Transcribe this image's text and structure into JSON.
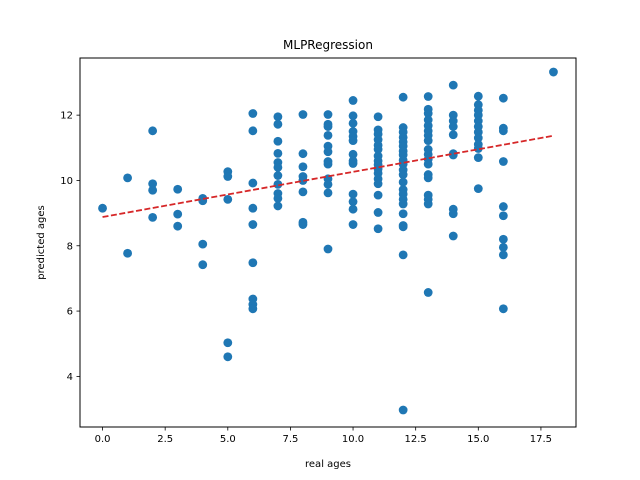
{
  "chart_data": {
    "type": "scatter",
    "title": "MLPRegression",
    "xlabel": "real ages",
    "ylabel": "predicted ages",
    "xlim": [
      -0.9,
      18.9
    ],
    "ylim": [
      2.45,
      13.75
    ],
    "xticks": [
      0.0,
      2.5,
      5.0,
      7.5,
      10.0,
      12.5,
      15.0,
      17.5
    ],
    "xtick_labels": [
      "0.0",
      "2.5",
      "5.0",
      "7.5",
      "10.0",
      "12.5",
      "15.0",
      "17.5"
    ],
    "yticks": [
      4,
      6,
      8,
      10,
      12
    ],
    "ytick_labels": [
      "4",
      "6",
      "8",
      "10",
      "12"
    ],
    "grid": false,
    "point_color": "#1f77b4",
    "trend_color": "#d62728",
    "trend_style": "dashed",
    "trend_line": {
      "x": [
        0,
        18
      ],
      "y": [
        8.88,
        11.37
      ]
    },
    "points": [
      {
        "x": 0,
        "y": 9.15
      },
      {
        "x": 1,
        "y": 10.08
      },
      {
        "x": 1,
        "y": 7.77
      },
      {
        "x": 2,
        "y": 11.52
      },
      {
        "x": 2,
        "y": 9.9
      },
      {
        "x": 2,
        "y": 9.7
      },
      {
        "x": 2,
        "y": 8.87
      },
      {
        "x": 3,
        "y": 9.73
      },
      {
        "x": 3,
        "y": 8.97
      },
      {
        "x": 3,
        "y": 8.6
      },
      {
        "x": 4,
        "y": 9.45
      },
      {
        "x": 4,
        "y": 9.38
      },
      {
        "x": 4,
        "y": 8.05
      },
      {
        "x": 4,
        "y": 7.42
      },
      {
        "x": 5,
        "y": 10.27
      },
      {
        "x": 5,
        "y": 10.12
      },
      {
        "x": 5,
        "y": 9.42
      },
      {
        "x": 5,
        "y": 5.03
      },
      {
        "x": 5,
        "y": 4.6
      },
      {
        "x": 6,
        "y": 12.05
      },
      {
        "x": 6,
        "y": 11.52
      },
      {
        "x": 6,
        "y": 9.92
      },
      {
        "x": 6,
        "y": 9.15
      },
      {
        "x": 6,
        "y": 8.65
      },
      {
        "x": 6,
        "y": 7.48
      },
      {
        "x": 6,
        "y": 6.37
      },
      {
        "x": 6,
        "y": 6.2
      },
      {
        "x": 6,
        "y": 6.07
      },
      {
        "x": 7,
        "y": 11.95
      },
      {
        "x": 7,
        "y": 11.72
      },
      {
        "x": 7,
        "y": 11.2
      },
      {
        "x": 7,
        "y": 10.83
      },
      {
        "x": 7,
        "y": 10.55
      },
      {
        "x": 7,
        "y": 10.4
      },
      {
        "x": 7,
        "y": 10.15
      },
      {
        "x": 7,
        "y": 9.88
      },
      {
        "x": 7,
        "y": 9.6
      },
      {
        "x": 7,
        "y": 9.45
      },
      {
        "x": 7,
        "y": 9.22
      },
      {
        "x": 8,
        "y": 12.02
      },
      {
        "x": 8,
        "y": 10.82
      },
      {
        "x": 8,
        "y": 10.42
      },
      {
        "x": 8,
        "y": 10.12
      },
      {
        "x": 8,
        "y": 10.0
      },
      {
        "x": 8,
        "y": 9.65
      },
      {
        "x": 8,
        "y": 8.72
      },
      {
        "x": 8,
        "y": 8.65
      },
      {
        "x": 9,
        "y": 12.02
      },
      {
        "x": 9,
        "y": 11.72
      },
      {
        "x": 9,
        "y": 11.65
      },
      {
        "x": 9,
        "y": 11.38
      },
      {
        "x": 9,
        "y": 11.05
      },
      {
        "x": 9,
        "y": 10.88
      },
      {
        "x": 9,
        "y": 10.58
      },
      {
        "x": 9,
        "y": 10.5
      },
      {
        "x": 9,
        "y": 10.05
      },
      {
        "x": 9,
        "y": 9.88
      },
      {
        "x": 9,
        "y": 9.62
      },
      {
        "x": 9,
        "y": 7.9
      },
      {
        "x": 10,
        "y": 12.45
      },
      {
        "x": 10,
        "y": 11.98
      },
      {
        "x": 10,
        "y": 11.75
      },
      {
        "x": 10,
        "y": 11.5
      },
      {
        "x": 10,
        "y": 11.35
      },
      {
        "x": 10,
        "y": 11.22
      },
      {
        "x": 10,
        "y": 10.8
      },
      {
        "x": 10,
        "y": 10.6
      },
      {
        "x": 10,
        "y": 10.52
      },
      {
        "x": 10,
        "y": 9.58
      },
      {
        "x": 10,
        "y": 9.35
      },
      {
        "x": 10,
        "y": 9.12
      },
      {
        "x": 10,
        "y": 8.65
      },
      {
        "x": 11,
        "y": 11.95
      },
      {
        "x": 11,
        "y": 11.55
      },
      {
        "x": 11,
        "y": 11.42
      },
      {
        "x": 11,
        "y": 11.25
      },
      {
        "x": 11,
        "y": 11.08
      },
      {
        "x": 11,
        "y": 10.95
      },
      {
        "x": 11,
        "y": 10.75
      },
      {
        "x": 11,
        "y": 10.6
      },
      {
        "x": 11,
        "y": 10.48
      },
      {
        "x": 11,
        "y": 10.35
      },
      {
        "x": 11,
        "y": 10.22
      },
      {
        "x": 11,
        "y": 10.05
      },
      {
        "x": 11,
        "y": 9.9
      },
      {
        "x": 11,
        "y": 9.55
      },
      {
        "x": 11,
        "y": 9.02
      },
      {
        "x": 11,
        "y": 8.52
      },
      {
        "x": 12,
        "y": 12.55
      },
      {
        "x": 12,
        "y": 11.62
      },
      {
        "x": 12,
        "y": 11.48
      },
      {
        "x": 12,
        "y": 11.32
      },
      {
        "x": 12,
        "y": 11.18
      },
      {
        "x": 12,
        "y": 11.05
      },
      {
        "x": 12,
        "y": 10.9
      },
      {
        "x": 12,
        "y": 10.78
      },
      {
        "x": 12,
        "y": 10.62
      },
      {
        "x": 12,
        "y": 10.5
      },
      {
        "x": 12,
        "y": 10.32
      },
      {
        "x": 12,
        "y": 10.18
      },
      {
        "x": 12,
        "y": 9.95
      },
      {
        "x": 12,
        "y": 9.72
      },
      {
        "x": 12,
        "y": 9.58
      },
      {
        "x": 12,
        "y": 9.42
      },
      {
        "x": 12,
        "y": 9.28
      },
      {
        "x": 12,
        "y": 8.98
      },
      {
        "x": 12,
        "y": 8.62
      },
      {
        "x": 12,
        "y": 8.58
      },
      {
        "x": 12,
        "y": 7.72
      },
      {
        "x": 12,
        "y": 2.97
      },
      {
        "x": 13,
        "y": 12.57
      },
      {
        "x": 13,
        "y": 12.18
      },
      {
        "x": 13,
        "y": 12.05
      },
      {
        "x": 13,
        "y": 11.85
      },
      {
        "x": 13,
        "y": 11.68
      },
      {
        "x": 13,
        "y": 11.52
      },
      {
        "x": 13,
        "y": 11.38
      },
      {
        "x": 13,
        "y": 11.22
      },
      {
        "x": 13,
        "y": 10.95
      },
      {
        "x": 13,
        "y": 10.8
      },
      {
        "x": 13,
        "y": 10.65
      },
      {
        "x": 13,
        "y": 10.5
      },
      {
        "x": 13,
        "y": 10.18
      },
      {
        "x": 13,
        "y": 10.08
      },
      {
        "x": 13,
        "y": 9.55
      },
      {
        "x": 13,
        "y": 9.42
      },
      {
        "x": 13,
        "y": 9.28
      },
      {
        "x": 13,
        "y": 6.57
      },
      {
        "x": 14,
        "y": 12.92
      },
      {
        "x": 14,
        "y": 12.0
      },
      {
        "x": 14,
        "y": 11.82
      },
      {
        "x": 14,
        "y": 11.65
      },
      {
        "x": 14,
        "y": 11.4
      },
      {
        "x": 14,
        "y": 10.82
      },
      {
        "x": 14,
        "y": 10.78
      },
      {
        "x": 14,
        "y": 9.12
      },
      {
        "x": 14,
        "y": 8.98
      },
      {
        "x": 14,
        "y": 8.3
      },
      {
        "x": 15,
        "y": 12.58
      },
      {
        "x": 15,
        "y": 12.32
      },
      {
        "x": 15,
        "y": 12.15
      },
      {
        "x": 15,
        "y": 12.0
      },
      {
        "x": 15,
        "y": 11.82
      },
      {
        "x": 15,
        "y": 11.65
      },
      {
        "x": 15,
        "y": 11.48
      },
      {
        "x": 15,
        "y": 11.3
      },
      {
        "x": 15,
        "y": 11.1
      },
      {
        "x": 15,
        "y": 10.98
      },
      {
        "x": 15,
        "y": 10.7
      },
      {
        "x": 15,
        "y": 9.75
      },
      {
        "x": 16,
        "y": 12.52
      },
      {
        "x": 16,
        "y": 11.6
      },
      {
        "x": 16,
        "y": 11.52
      },
      {
        "x": 16,
        "y": 10.58
      },
      {
        "x": 16,
        "y": 9.2
      },
      {
        "x": 16,
        "y": 8.92
      },
      {
        "x": 16,
        "y": 8.2
      },
      {
        "x": 16,
        "y": 7.95
      },
      {
        "x": 16,
        "y": 7.72
      },
      {
        "x": 16,
        "y": 6.07
      },
      {
        "x": 18,
        "y": 13.32
      }
    ]
  }
}
